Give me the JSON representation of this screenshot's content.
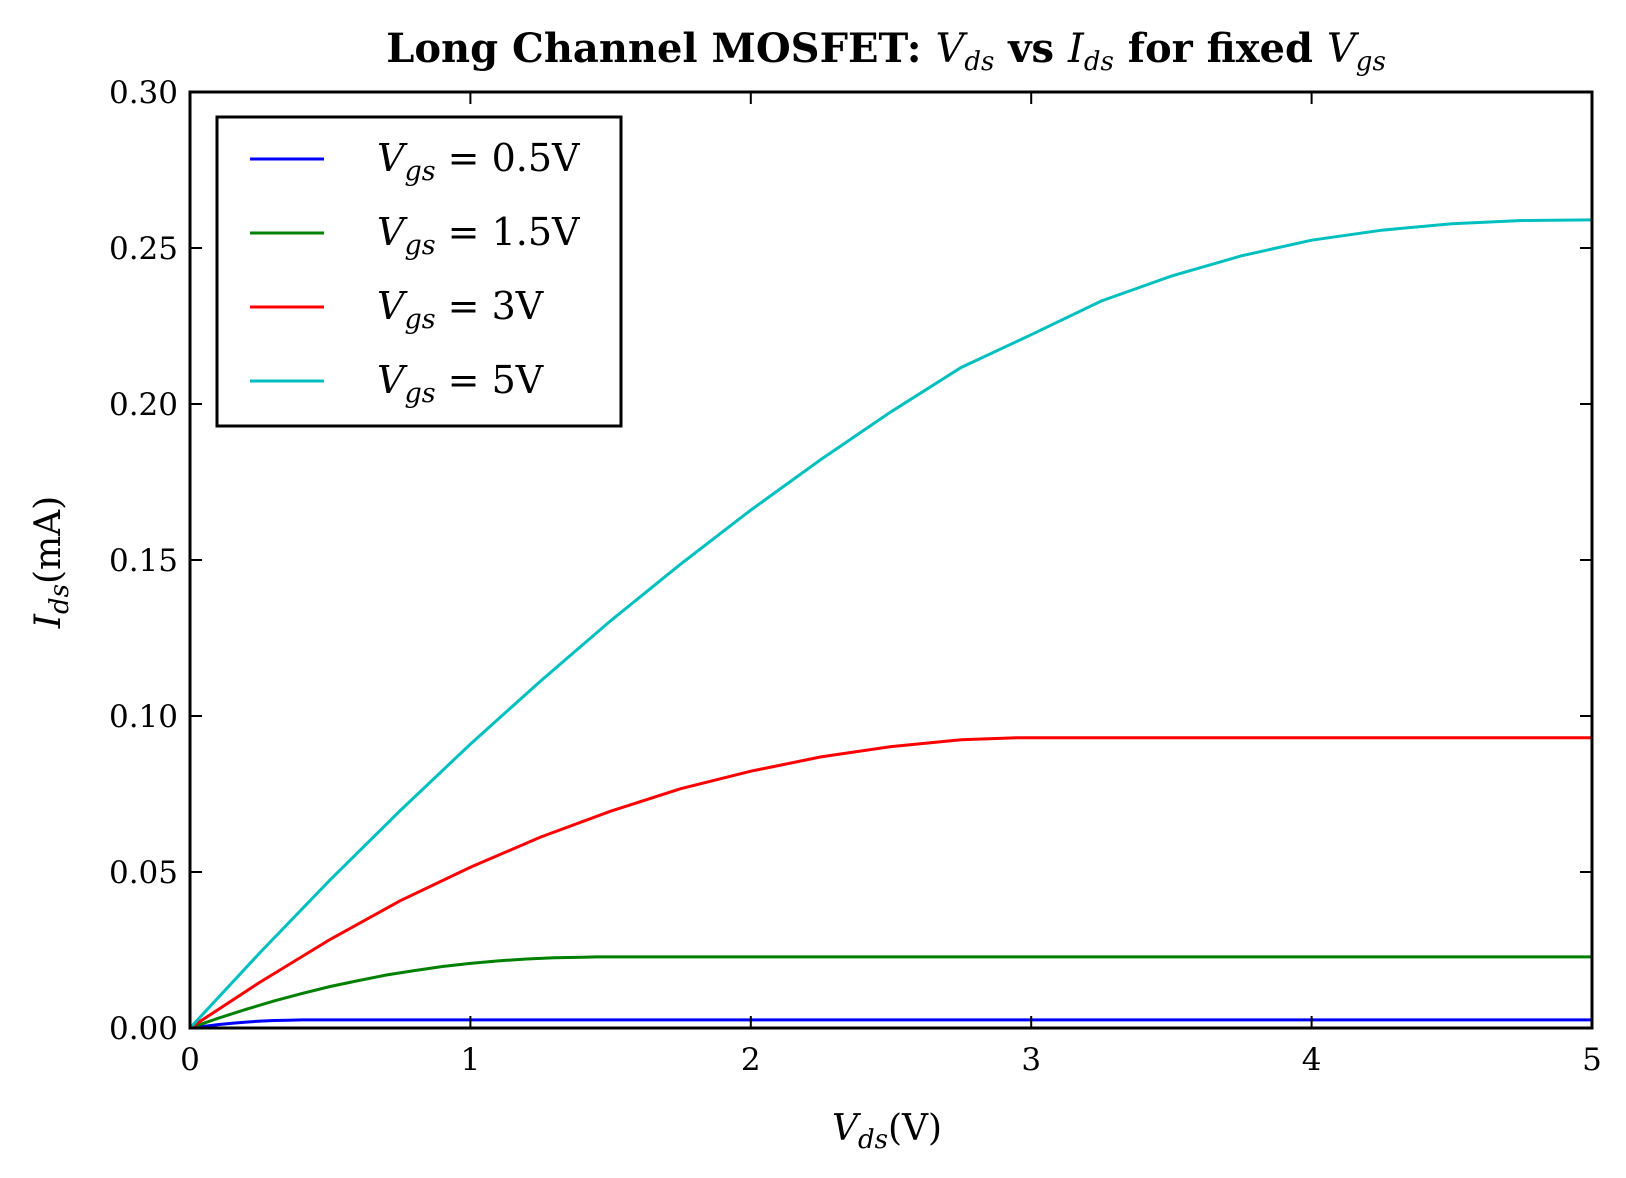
{
  "chart_data": {
    "type": "line",
    "title": {
      "prefix": "Long Channel MOSFET: ",
      "var1": "V",
      "var1_sub": "ds",
      "mid": " vs ",
      "var2": "I",
      "var2_sub": "ds",
      "suffix": " for fixed ",
      "var3": "V",
      "var3_sub": "gs"
    },
    "xlabel": {
      "sym": "V",
      "sub": "ds",
      "unit": "(V)"
    },
    "ylabel": {
      "sym": "I",
      "sub": "ds",
      "unit": "(mA)"
    },
    "xlim": [
      0,
      5
    ],
    "ylim": [
      0,
      0.3
    ],
    "x_ticks": [
      0,
      1,
      2,
      3,
      4,
      5
    ],
    "x_tick_labels": [
      "0",
      "1",
      "2",
      "3",
      "4",
      "5"
    ],
    "y_ticks": [
      0,
      0.05,
      0.1,
      0.15,
      0.2,
      0.25,
      0.3
    ],
    "y_tick_labels": [
      "0.00",
      "0.05",
      "0.10",
      "0.15",
      "0.20",
      "0.25",
      "0.30"
    ],
    "grid": false,
    "legend_position": "upper-left",
    "series": [
      {
        "name": "Vgs = 0.5V",
        "label_sym": "V",
        "label_sub": "gs",
        "label_rest": " = 0.5V",
        "color": "#0000ff",
        "x": [
          0,
          0.05,
          0.1,
          0.15,
          0.2,
          0.25,
          0.3,
          0.35,
          0.4,
          0.45,
          5.0
        ],
        "y": [
          0,
          0.0005,
          0.0011,
          0.0015,
          0.0019,
          0.0022,
          0.0024,
          0.0025,
          0.0026,
          0.0026,
          0.0026
        ]
      },
      {
        "name": "Vgs = 1.5V",
        "label_sym": "V",
        "label_sub": "gs",
        "label_rest": " = 1.5V",
        "color": "#008000",
        "x": [
          0,
          0.1,
          0.2,
          0.3,
          0.4,
          0.5,
          0.6,
          0.7,
          0.8,
          0.9,
          1.0,
          1.1,
          1.2,
          1.3,
          1.4,
          1.45,
          5.0
        ],
        "y": [
          0,
          0.0031,
          0.006,
          0.0087,
          0.0111,
          0.0133,
          0.0152,
          0.017,
          0.0184,
          0.0197,
          0.0207,
          0.0215,
          0.0221,
          0.0225,
          0.0227,
          0.0228,
          0.0228
        ]
      },
      {
        "name": "Vgs = 3V",
        "label_sym": "V",
        "label_sub": "gs",
        "label_rest": " = 3V",
        "color": "#ff0000",
        "x": [
          0,
          0.25,
          0.5,
          0.75,
          1.0,
          1.25,
          1.5,
          1.75,
          2.0,
          2.25,
          2.5,
          2.75,
          2.95,
          5.0
        ],
        "y": [
          0,
          0.0147,
          0.0284,
          0.0408,
          0.0515,
          0.0612,
          0.0695,
          0.0767,
          0.0823,
          0.0869,
          0.0902,
          0.0924,
          0.093,
          0.093
        ]
      },
      {
        "name": "Vgs = 5V",
        "label_sym": "V",
        "label_sub": "gs",
        "label_rest": " = 5V",
        "color": "#00bfbf",
        "x": [
          0,
          0.25,
          0.5,
          0.75,
          1.0,
          1.25,
          1.5,
          1.75,
          2.0,
          2.25,
          2.5,
          2.75,
          3.0,
          3.25,
          3.5,
          3.75,
          4.0,
          4.25,
          4.5,
          4.75,
          5.0
        ],
        "y": [
          0,
          0.0242,
          0.0475,
          0.0697,
          0.091,
          0.1112,
          0.1305,
          0.1487,
          0.166,
          0.1822,
          0.1975,
          0.2117,
          0.2222,
          0.233,
          0.241,
          0.2475,
          0.2525,
          0.2557,
          0.2578,
          0.2588,
          0.259
        ]
      }
    ]
  }
}
